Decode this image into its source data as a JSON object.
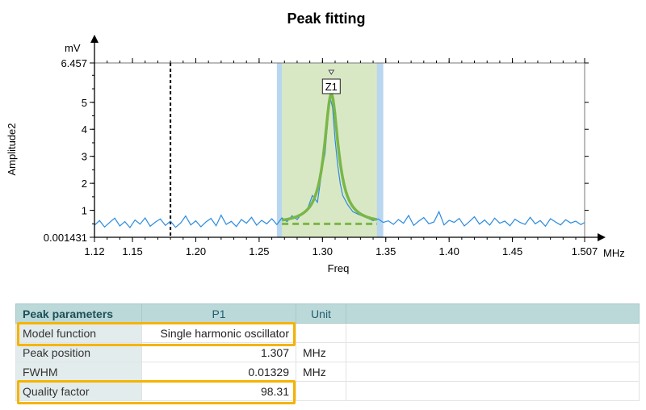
{
  "chart_data": {
    "type": "line",
    "title": "Peak fitting",
    "xlabel": "Freq",
    "ylabel": "Amplitude2",
    "x_unit": "MHz",
    "y_unit": "mV",
    "xlim": [
      1.12,
      1.507
    ],
    "ylim": [
      0.001431,
      6.457
    ],
    "x_ticks": [
      "1.12",
      "1.15",
      "1.20",
      "1.25",
      "1.30",
      "1.35",
      "1.40",
      "1.45",
      "1.507"
    ],
    "x_tick_values": [
      1.12,
      1.15,
      1.2,
      1.25,
      1.3,
      1.35,
      1.4,
      1.45,
      1.507
    ],
    "y_ticks": [
      "0.001431",
      "1",
      "2",
      "3",
      "4",
      "5",
      "6.457"
    ],
    "y_tick_values": [
      0.001431,
      1,
      2,
      3,
      4,
      5,
      6.457
    ],
    "marker_x": 1.18,
    "fit_range_outer": [
      1.264,
      1.348
    ],
    "fit_range_inner": [
      1.268,
      1.343
    ],
    "peak": {
      "label": "Z1",
      "x": 1.307,
      "y": 5.3,
      "fwhm": 0.01329,
      "baseline": 0.5
    },
    "colors": {
      "data": "#2b8be0",
      "fit": "#7ab648",
      "band_outer": "#b8d6f0",
      "band_inner": "#d9e8c4",
      "highlight": "#f5b400"
    },
    "series": [
      {
        "x": [
          1.12,
          1.124,
          1.128,
          1.132,
          1.136,
          1.14,
          1.144,
          1.148,
          1.152,
          1.156,
          1.16,
          1.164,
          1.168,
          1.172,
          1.176,
          1.18,
          1.184,
          1.188,
          1.192,
          1.196,
          1.2,
          1.204,
          1.208,
          1.212,
          1.216,
          1.22,
          1.224,
          1.228,
          1.232,
          1.236,
          1.24,
          1.244,
          1.248,
          1.252,
          1.256,
          1.26,
          1.264,
          1.268,
          1.272,
          1.276,
          1.28,
          1.284,
          1.288,
          1.292,
          1.296,
          1.3,
          1.302,
          1.304,
          1.306,
          1.308,
          1.31,
          1.312,
          1.314,
          1.316,
          1.32,
          1.324,
          1.328,
          1.332,
          1.336,
          1.34,
          1.344,
          1.348,
          1.352,
          1.356,
          1.36,
          1.364,
          1.368,
          1.372,
          1.376,
          1.38,
          1.384,
          1.388,
          1.392,
          1.396,
          1.4,
          1.404,
          1.408,
          1.412,
          1.416,
          1.42,
          1.424,
          1.428,
          1.432,
          1.436,
          1.44,
          1.444,
          1.448,
          1.452,
          1.456,
          1.46,
          1.464,
          1.468,
          1.472,
          1.476,
          1.48,
          1.484,
          1.488,
          1.492,
          1.496,
          1.5,
          1.504,
          1.507
        ],
        "y": [
          0.45,
          0.62,
          0.38,
          0.55,
          0.71,
          0.42,
          0.58,
          0.36,
          0.64,
          0.49,
          0.72,
          0.41,
          0.56,
          0.68,
          0.44,
          0.6,
          0.37,
          0.53,
          0.79,
          0.46,
          0.61,
          0.39,
          0.57,
          0.7,
          0.43,
          0.82,
          0.48,
          0.59,
          0.4,
          0.66,
          0.52,
          0.74,
          0.45,
          0.63,
          0.5,
          0.69,
          0.47,
          0.72,
          0.58,
          0.8,
          0.66,
          0.9,
          1.02,
          1.55,
          1.3,
          2.6,
          3.1,
          4.2,
          5.2,
          4.8,
          3.6,
          2.7,
          2.0,
          1.55,
          1.2,
          0.95,
          0.86,
          0.78,
          0.7,
          0.62,
          0.68,
          0.55,
          0.61,
          0.48,
          0.66,
          0.52,
          0.81,
          0.44,
          0.6,
          0.73,
          0.5,
          0.57,
          0.95,
          0.46,
          0.63,
          0.55,
          0.7,
          0.42,
          0.58,
          0.76,
          0.49,
          0.64,
          0.45,
          0.71,
          0.52,
          0.6,
          0.43,
          0.67,
          0.55,
          0.48,
          0.74,
          0.5,
          0.62,
          0.41,
          0.69,
          0.57,
          0.46,
          0.65,
          0.53,
          0.6,
          0.47,
          0.55
        ]
      }
    ]
  },
  "table": {
    "header": {
      "col1": "Peak parameters",
      "col2": "P1",
      "col3": "Unit"
    },
    "rows": [
      {
        "label": "Model function",
        "value": "Single harmonic oscillator",
        "unit": ""
      },
      {
        "label": "Peak position",
        "value": "1.307",
        "unit": "MHz"
      },
      {
        "label": "FWHM",
        "value": "0.01329",
        "unit": "MHz"
      },
      {
        "label": "Quality factor",
        "value": "98.31",
        "unit": ""
      }
    ]
  }
}
